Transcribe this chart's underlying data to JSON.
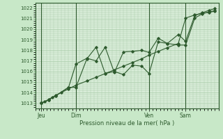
{
  "bg_color": "#c8e8c8",
  "plot_bg_color": "#d8ecd8",
  "grid_color": "#a8cca8",
  "line_color": "#2d5a2d",
  "marker_color": "#2d5a2d",
  "xlabel": "Pression niveau de la mer( hPa )",
  "xlabel_color": "#2d5a2d",
  "tick_color": "#2d5a2d",
  "ylim": [
    1012.5,
    1022.5
  ],
  "yticks": [
    1013,
    1014,
    1015,
    1016,
    1017,
    1018,
    1019,
    1020,
    1021,
    1022
  ],
  "day_labels": [
    "Jeu",
    "Dim",
    "Ven",
    "Sam"
  ],
  "day_positions": [
    0.03,
    0.22,
    0.62,
    0.82
  ],
  "series1_x": [
    0.03,
    0.05,
    0.07,
    0.09,
    0.11,
    0.14,
    0.18,
    0.22,
    0.28,
    0.33,
    0.38,
    0.43,
    0.48,
    0.53,
    0.58,
    0.62,
    0.67,
    0.72,
    0.78,
    0.82,
    0.87,
    0.91,
    0.95,
    0.98
  ],
  "series1_y": [
    1013.0,
    1013.15,
    1013.35,
    1013.55,
    1013.75,
    1014.0,
    1014.35,
    1014.7,
    1015.1,
    1015.45,
    1015.8,
    1016.15,
    1016.5,
    1016.85,
    1017.2,
    1017.55,
    1017.9,
    1018.25,
    1018.65,
    1021.05,
    1021.35,
    1021.5,
    1021.6,
    1021.7
  ],
  "series2_x": [
    0.03,
    0.07,
    0.11,
    0.18,
    0.22,
    0.28,
    0.33,
    0.38,
    0.43,
    0.48,
    0.53,
    0.58,
    0.62,
    0.67,
    0.72,
    0.78,
    0.82,
    0.87,
    0.91,
    0.95,
    0.98
  ],
  "series2_y": [
    1013.0,
    1013.3,
    1013.7,
    1014.5,
    1016.7,
    1017.25,
    1017.0,
    1018.3,
    1015.9,
    1017.85,
    1017.9,
    1018.0,
    1017.8,
    1019.15,
    1018.65,
    1018.5,
    1018.5,
    1021.05,
    1021.45,
    1021.65,
    1021.75
  ],
  "series3_x": [
    0.03,
    0.07,
    0.11,
    0.18,
    0.22,
    0.28,
    0.33,
    0.38,
    0.43,
    0.48,
    0.53,
    0.58,
    0.62,
    0.67,
    0.72,
    0.78,
    0.82,
    0.87,
    0.91,
    0.95,
    0.98
  ],
  "series3_y": [
    1013.0,
    1013.3,
    1013.7,
    1014.5,
    1014.5,
    1017.2,
    1018.3,
    1015.8,
    1016.0,
    1015.7,
    1016.6,
    1016.5,
    1015.8,
    1018.8,
    1018.65,
    1019.5,
    1018.85,
    1021.3,
    1021.55,
    1021.8,
    1021.95
  ]
}
